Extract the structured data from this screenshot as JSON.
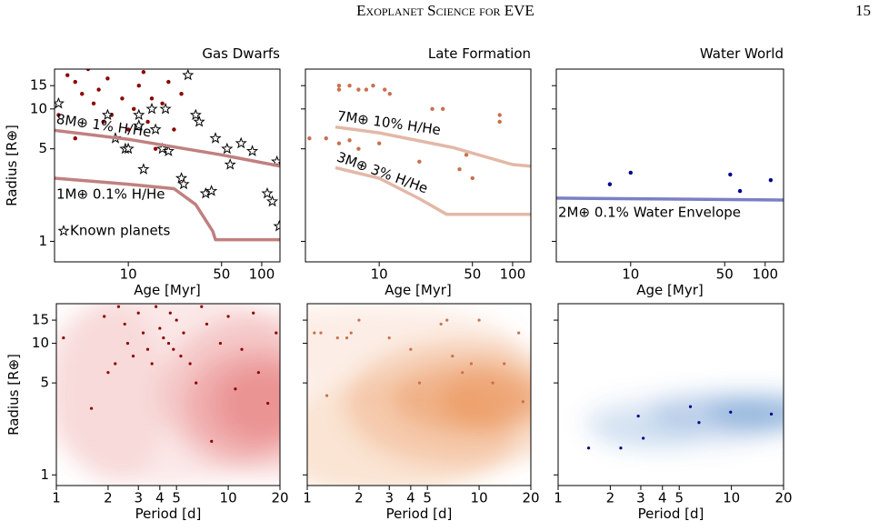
{
  "header": {
    "title": "Exoplanet Science for EVE",
    "page": "15"
  },
  "chart_data": [
    {
      "type": "scatter",
      "title": "Gas Dwarfs",
      "x_label": "Age [Myr]",
      "y_label": "Radius [R⊕]",
      "log_x": true,
      "log_y": true,
      "xlim": [
        2.8,
        137
      ],
      "ylim": [
        0.7,
        20
      ],
      "xticks": [
        10,
        50,
        100
      ],
      "yticks": [
        1,
        5,
        10,
        15
      ],
      "show_ytick_labels": true,
      "legend": "lower left",
      "contours": false,
      "series": [
        {
          "type": "scatter",
          "marker": "dot",
          "color": "#8b0000",
          "x": [
            3.5,
            4,
            4.5,
            5,
            5.5,
            6,
            6.5,
            7,
            7.5,
            8,
            9,
            9.5,
            10,
            11,
            12,
            13,
            14,
            15,
            16,
            18,
            20,
            22,
            25,
            3,
            4
          ],
          "values": [
            18,
            16,
            13,
            20,
            11,
            14,
            8,
            17,
            9,
            6,
            12,
            5,
            7,
            10,
            15,
            19,
            8,
            12,
            5,
            11,
            16,
            7,
            13,
            9,
            6
          ]
        },
        {
          "type": "scatter",
          "marker": "star",
          "name": "Known planets",
          "color": "#000000",
          "x": [
            3,
            7,
            8,
            9.5,
            12,
            13,
            15,
            16,
            18,
            19,
            20,
            25,
            26,
            28,
            32,
            34,
            38,
            42,
            45,
            55,
            58,
            70,
            85,
            110,
            120,
            130,
            135,
            10,
            12
          ],
          "values": [
            11,
            9,
            6,
            5,
            9,
            3.5,
            10,
            7,
            5,
            10,
            4.8,
            3,
            2.7,
            18,
            9,
            8,
            2.3,
            2.4,
            6,
            5,
            3.8,
            5.5,
            4.8,
            2.3,
            2,
            4,
            1.3,
            5,
            7.5
          ]
        },
        {
          "type": "line",
          "name": "8M⊕  1% H/He",
          "color": "#c08080",
          "x": [
            2.8,
            10,
            50,
            137
          ],
          "values": [
            6.9,
            5.9,
            4.5,
            3.7
          ]
        },
        {
          "type": "line",
          "name": "1M⊕  0.1% H/He",
          "color": "#c08080",
          "x": [
            2.8,
            10,
            22,
            32,
            43,
            45,
            137
          ],
          "values": [
            3.0,
            2.7,
            2.5,
            1.9,
            1.19,
            1.03,
            1.03
          ]
        }
      ]
    },
    {
      "type": "scatter",
      "title": "Late Formation",
      "x_label": "Age [Myr]",
      "log_x": true,
      "log_y": true,
      "xlim": [
        2.8,
        137
      ],
      "ylim": [
        0.7,
        20
      ],
      "xticks": [
        10,
        50,
        100
      ],
      "yticks": [
        1,
        5,
        10,
        15
      ],
      "show_ytick_labels": false,
      "contours": false,
      "series": [
        {
          "type": "scatter",
          "marker": "dot",
          "color": "#c8714f",
          "x": [
            5,
            5,
            6,
            7,
            8,
            9,
            11,
            12,
            4,
            5,
            6,
            7,
            10,
            25,
            30,
            40,
            45,
            50,
            80,
            80,
            3,
            20
          ],
          "values": [
            15,
            14,
            15,
            14,
            14,
            15,
            14,
            13,
            6,
            5.5,
            5.8,
            5,
            5.5,
            10,
            10,
            3.5,
            4.5,
            3,
            9,
            8,
            6,
            4
          ]
        },
        {
          "type": "line",
          "name": "7M⊕  10% H/He",
          "color": "#e3b8a8",
          "x": [
            4.7,
            10,
            36,
            100,
            137
          ],
          "values": [
            7.3,
            6.6,
            5.1,
            3.8,
            3.7
          ]
        },
        {
          "type": "line",
          "name": "3M⊕  3% H/He",
          "color": "#e3b8a8",
          "x": [
            4.7,
            10,
            20,
            32,
            137
          ],
          "values": [
            3.6,
            3.0,
            2.1,
            1.6,
            1.6
          ]
        }
      ]
    },
    {
      "type": "scatter",
      "title": "Water World",
      "x_label": "Age [Myr]",
      "log_x": true,
      "log_y": true,
      "xlim": [
        2.8,
        137
      ],
      "ylim": [
        0.7,
        20
      ],
      "xticks": [
        10,
        50,
        100
      ],
      "yticks": [
        1,
        5,
        10,
        15
      ],
      "show_ytick_labels": false,
      "contours": false,
      "series": [
        {
          "type": "scatter",
          "marker": "dot",
          "color": "#00008b",
          "x": [
            7,
            10,
            55,
            65,
            110
          ],
          "values": [
            2.7,
            3.3,
            3.2,
            2.4,
            2.9
          ]
        },
        {
          "type": "line",
          "name": "2M⊕  0.1% Water Envelope",
          "color": "#7a80c4",
          "x": [
            2.8,
            137
          ],
          "values": [
            2.12,
            2.05
          ]
        }
      ]
    },
    {
      "type": "scatter",
      "x_label": "Period [d]",
      "y_label": "Radius [R⊕]",
      "log_x": true,
      "log_y": true,
      "xlim": [
        1,
        20
      ],
      "ylim": [
        0.83,
        20
      ],
      "xticks": [
        1,
        2,
        3,
        4,
        5,
        10,
        20
      ],
      "yticks": [
        1,
        5,
        10,
        15
      ],
      "show_ytick_labels": true,
      "contours": true,
      "contour_color": "#e05a5a",
      "series": [
        {
          "type": "scatter",
          "marker": "dot",
          "color": "#8b0000",
          "x": [
            1.1,
            1.6,
            1.9,
            2,
            2.3,
            2.5,
            2.6,
            2.8,
            3,
            3.2,
            3.4,
            3.6,
            3.8,
            4,
            4.2,
            4.5,
            4.6,
            4.8,
            5,
            5.3,
            5.5,
            6,
            6.5,
            7,
            7.5,
            8,
            9,
            10,
            11,
            12,
            14,
            15,
            17,
            19,
            2.2
          ],
          "values": [
            11,
            3.2,
            16,
            6,
            19,
            14,
            10,
            8,
            17,
            12,
            9,
            7,
            19,
            13,
            11,
            10,
            17,
            9,
            15,
            8,
            12,
            7,
            5,
            19,
            14,
            1.8,
            10,
            16,
            4.5,
            9,
            17,
            6,
            3.5,
            12,
            7
          ]
        }
      ]
    },
    {
      "type": "scatter",
      "x_label": "Period [d]",
      "log_x": true,
      "log_y": true,
      "xlim": [
        1,
        20
      ],
      "ylim": [
        0.83,
        20
      ],
      "xticks": [
        1,
        2,
        3,
        4,
        5,
        10,
        20
      ],
      "yticks": [
        1,
        5,
        10,
        15
      ],
      "show_ytick_labels": false,
      "contours": true,
      "contour_color": "#e8823c",
      "series": [
        {
          "type": "scatter",
          "marker": "dot",
          "color": "#c8714f",
          "x": [
            1.1,
            1.2,
            1.3,
            1.5,
            1.7,
            1.8,
            2,
            3,
            4,
            4.5,
            6,
            6.5,
            7,
            8,
            9,
            10,
            12,
            14,
            17,
            18
          ],
          "values": [
            12,
            12,
            4,
            11,
            11,
            12,
            15,
            11,
            9,
            5,
            14,
            15,
            8,
            6,
            7,
            15,
            5,
            7,
            12,
            3.6
          ]
        }
      ]
    },
    {
      "type": "scatter",
      "x_label": "Period [d]",
      "log_x": true,
      "log_y": true,
      "xlim": [
        1,
        20
      ],
      "ylim": [
        0.83,
        20
      ],
      "xticks": [
        1,
        2,
        3,
        4,
        5,
        10,
        20
      ],
      "yticks": [
        1,
        5,
        10,
        15
      ],
      "show_ytick_labels": false,
      "contours": true,
      "contour_color": "#3a78c0",
      "series": [
        {
          "type": "scatter",
          "marker": "dot",
          "color": "#00008b",
          "x": [
            1.5,
            2.3,
            2.9,
            3.1,
            5.8,
            6.5,
            9.9,
            17
          ],
          "values": [
            1.6,
            1.6,
            2.8,
            1.9,
            3.3,
            2.5,
            3.0,
            2.9
          ]
        }
      ]
    }
  ]
}
